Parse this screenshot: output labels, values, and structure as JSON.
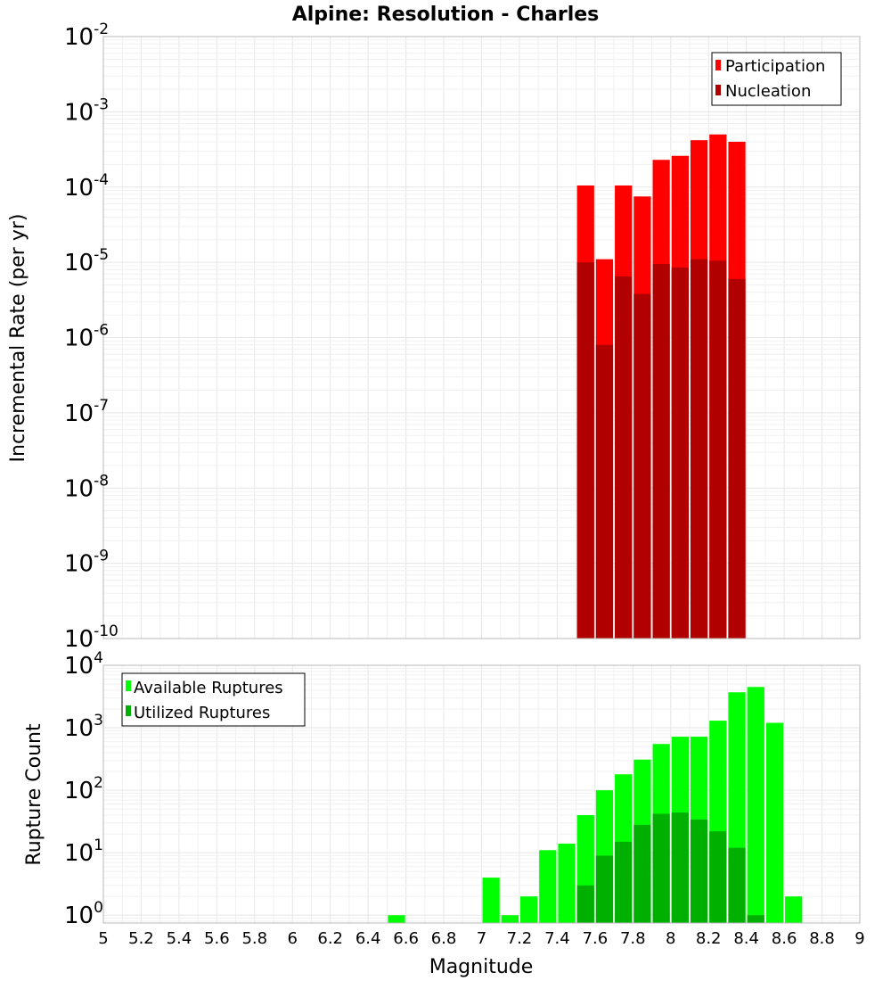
{
  "title": "Alpine: Resolution - Charles",
  "xlabel": "Magnitude",
  "x_ticks": [
    "5",
    "5.2",
    "5.4",
    "5.6",
    "5.8",
    "6",
    "6.2",
    "6.4",
    "6.6",
    "6.8",
    "7",
    "7.2",
    "7.4",
    "7.6",
    "7.8",
    "8",
    "8.2",
    "8.4",
    "8.6",
    "8.8",
    "9"
  ],
  "top_panel": {
    "ylabel": "Incremental Rate (per yr)",
    "y_tick_exponents": [
      "-10",
      "-9",
      "-8",
      "-7",
      "-6",
      "-5",
      "-4",
      "-3",
      "-2"
    ],
    "legend": {
      "position": "top-right",
      "entries": [
        "Participation",
        "Nucleation"
      ]
    }
  },
  "bottom_panel": {
    "ylabel": "Rupture Count",
    "y_tick_exponents": [
      "0",
      "1",
      "2",
      "3",
      "4"
    ],
    "legend": {
      "position": "top-left",
      "entries": [
        "Available Ruptures",
        "Utilized Ruptures"
      ]
    }
  },
  "colors": {
    "participation": "#ff0000",
    "nucleation": "#b00000",
    "available": "#00ff00",
    "utilized": "#00b000"
  },
  "chart_data": [
    {
      "type": "bar",
      "title": "Alpine: Resolution - Charles",
      "xlabel": "Magnitude",
      "ylabel": "Incremental Rate (per yr)",
      "yscale": "log",
      "xlim": [
        5,
        9
      ],
      "ylim": [
        1e-10,
        0.01
      ],
      "grid": true,
      "legend": "top-right",
      "x": [
        7.55,
        7.65,
        7.75,
        7.85,
        7.95,
        8.05,
        8.15,
        8.25,
        8.35
      ],
      "series": [
        {
          "name": "Participation",
          "values": [
            0.000105,
            1.1e-05,
            0.000105,
            7.5e-05,
            0.00023,
            0.00026,
            0.00042,
            0.0005,
            0.0004
          ]
        },
        {
          "name": "Nucleation",
          "values": [
            1e-05,
            8e-07,
            6.5e-06,
            3.8e-06,
            9.5e-06,
            8.5e-06,
            1.1e-05,
            1.05e-05,
            6e-06
          ]
        }
      ]
    },
    {
      "type": "bar",
      "xlabel": "Magnitude",
      "ylabel": "Rupture Count",
      "yscale": "log",
      "xlim": [
        5,
        9
      ],
      "ylim": [
        0.75,
        10000
      ],
      "grid": true,
      "legend": "top-left",
      "x": [
        6.55,
        7.05,
        7.15,
        7.25,
        7.35,
        7.45,
        7.55,
        7.65,
        7.75,
        7.85,
        7.95,
        8.05,
        8.15,
        8.25,
        8.35,
        8.45,
        8.55,
        8.65
      ],
      "series": [
        {
          "name": "Available Ruptures",
          "values": [
            1,
            4,
            1,
            2,
            11,
            14,
            40,
            100,
            180,
            310,
            550,
            720,
            720,
            1300,
            3700,
            4500,
            1200,
            2
          ]
        },
        {
          "name": "Utilized Ruptures",
          "values": [
            null,
            null,
            null,
            null,
            null,
            null,
            3,
            9,
            15,
            28,
            42,
            44,
            34,
            22,
            12,
            1,
            null,
            null
          ]
        }
      ]
    }
  ]
}
